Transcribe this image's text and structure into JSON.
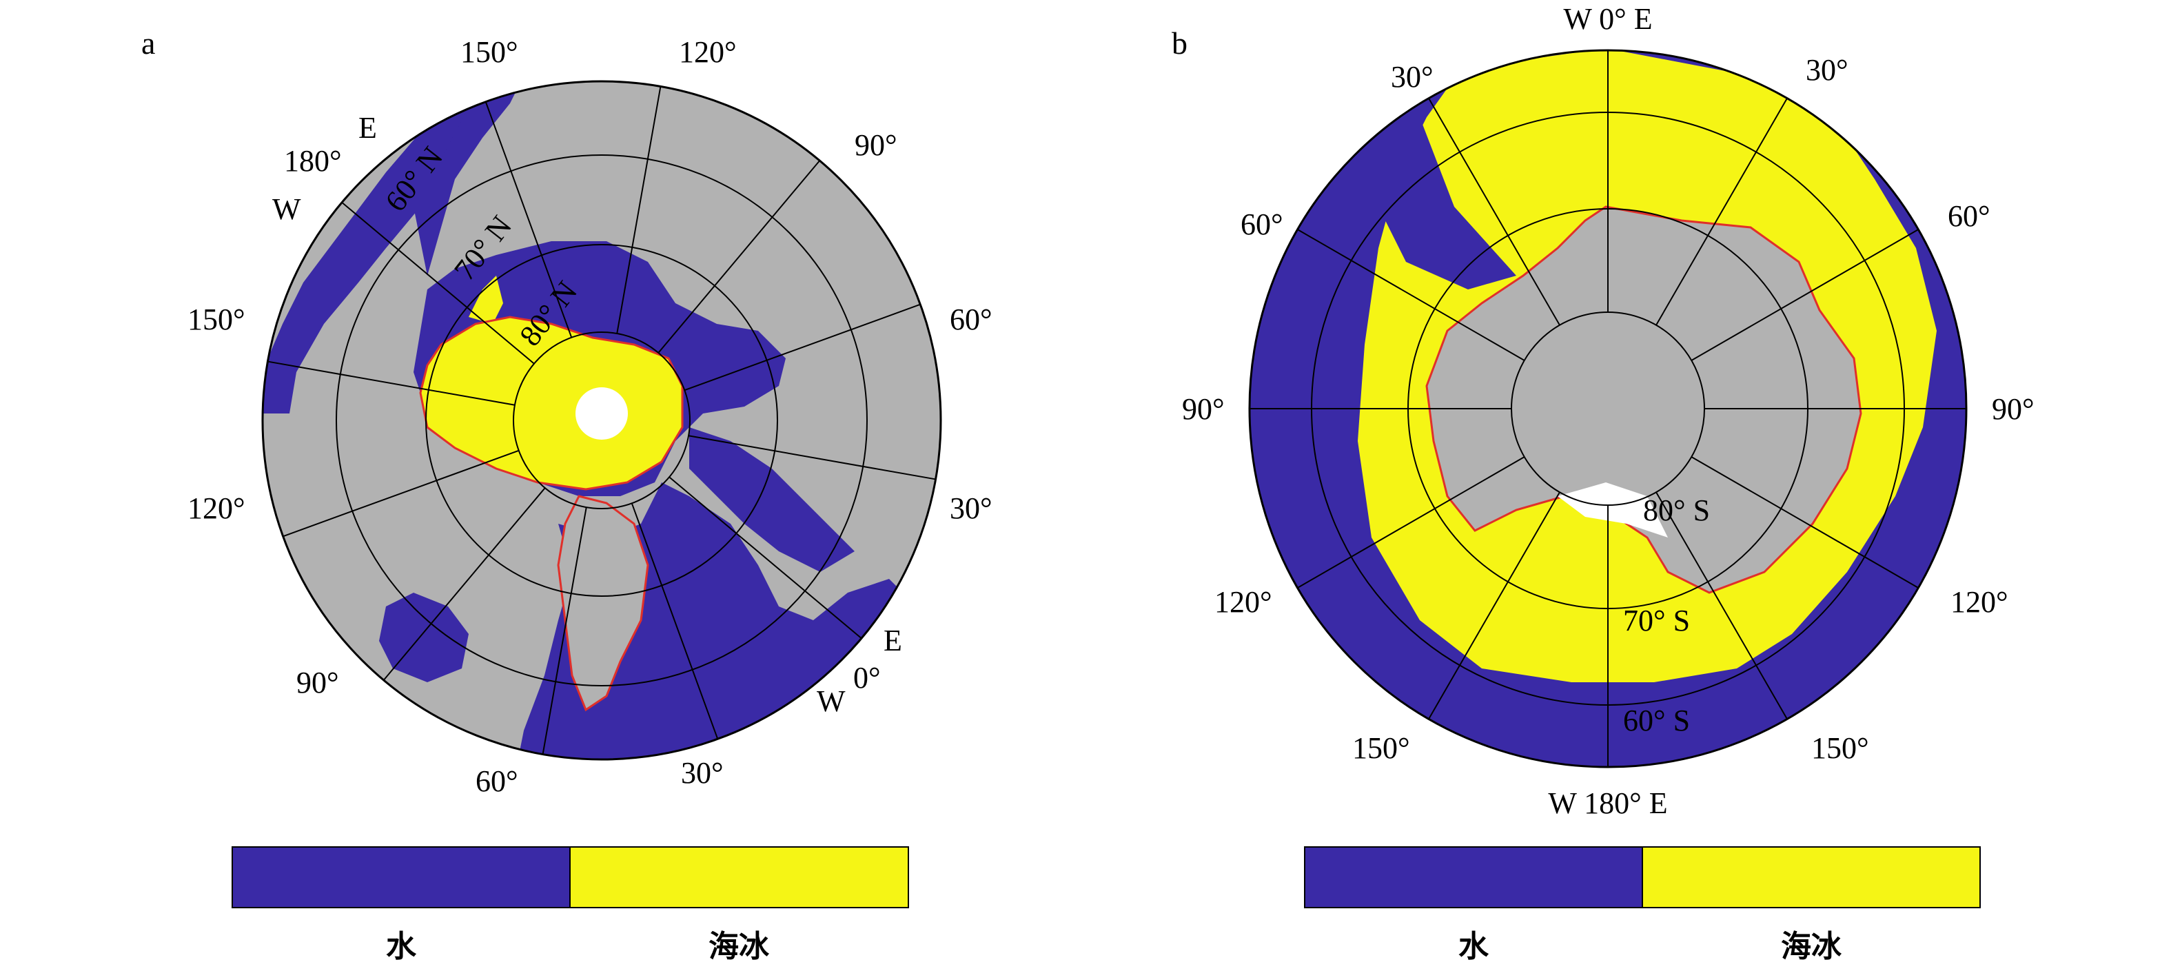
{
  "panels": [
    {
      "id": "a",
      "label": "a",
      "hemisphere": "north",
      "lat_labels": [
        "60° N",
        "70° N",
        "80° N"
      ],
      "lon_labels": [
        "150°",
        "120°",
        "90°",
        "60°",
        "30°",
        "0°",
        "30°",
        "60°",
        "90°",
        "120°",
        "150°",
        "180°"
      ],
      "hemi_labels": [
        "E",
        "W",
        "E",
        "W"
      ],
      "legend": {
        "classes": [
          "水",
          "海冰"
        ],
        "colors": [
          "#3a2aa6",
          "#f5f515"
        ]
      }
    },
    {
      "id": "b",
      "label": "b",
      "hemisphere": "south",
      "lat_labels": [
        "80° S",
        "70° S",
        "60° S"
      ],
      "lon_labels": [
        "W 0° E",
        "30°",
        "30°",
        "60°",
        "60°",
        "90°",
        "90°",
        "120°",
        "120°",
        "150°",
        "150°",
        "W 180° E"
      ],
      "legend": {
        "classes": [
          "水",
          "海冰"
        ],
        "colors": [
          "#3a2aa6",
          "#f5f515"
        ]
      }
    }
  ],
  "colors": {
    "water": "#3a2aa6",
    "sea_ice": "#f5f515",
    "land": "#b2b2b2",
    "coast_line": "#e0302a"
  }
}
